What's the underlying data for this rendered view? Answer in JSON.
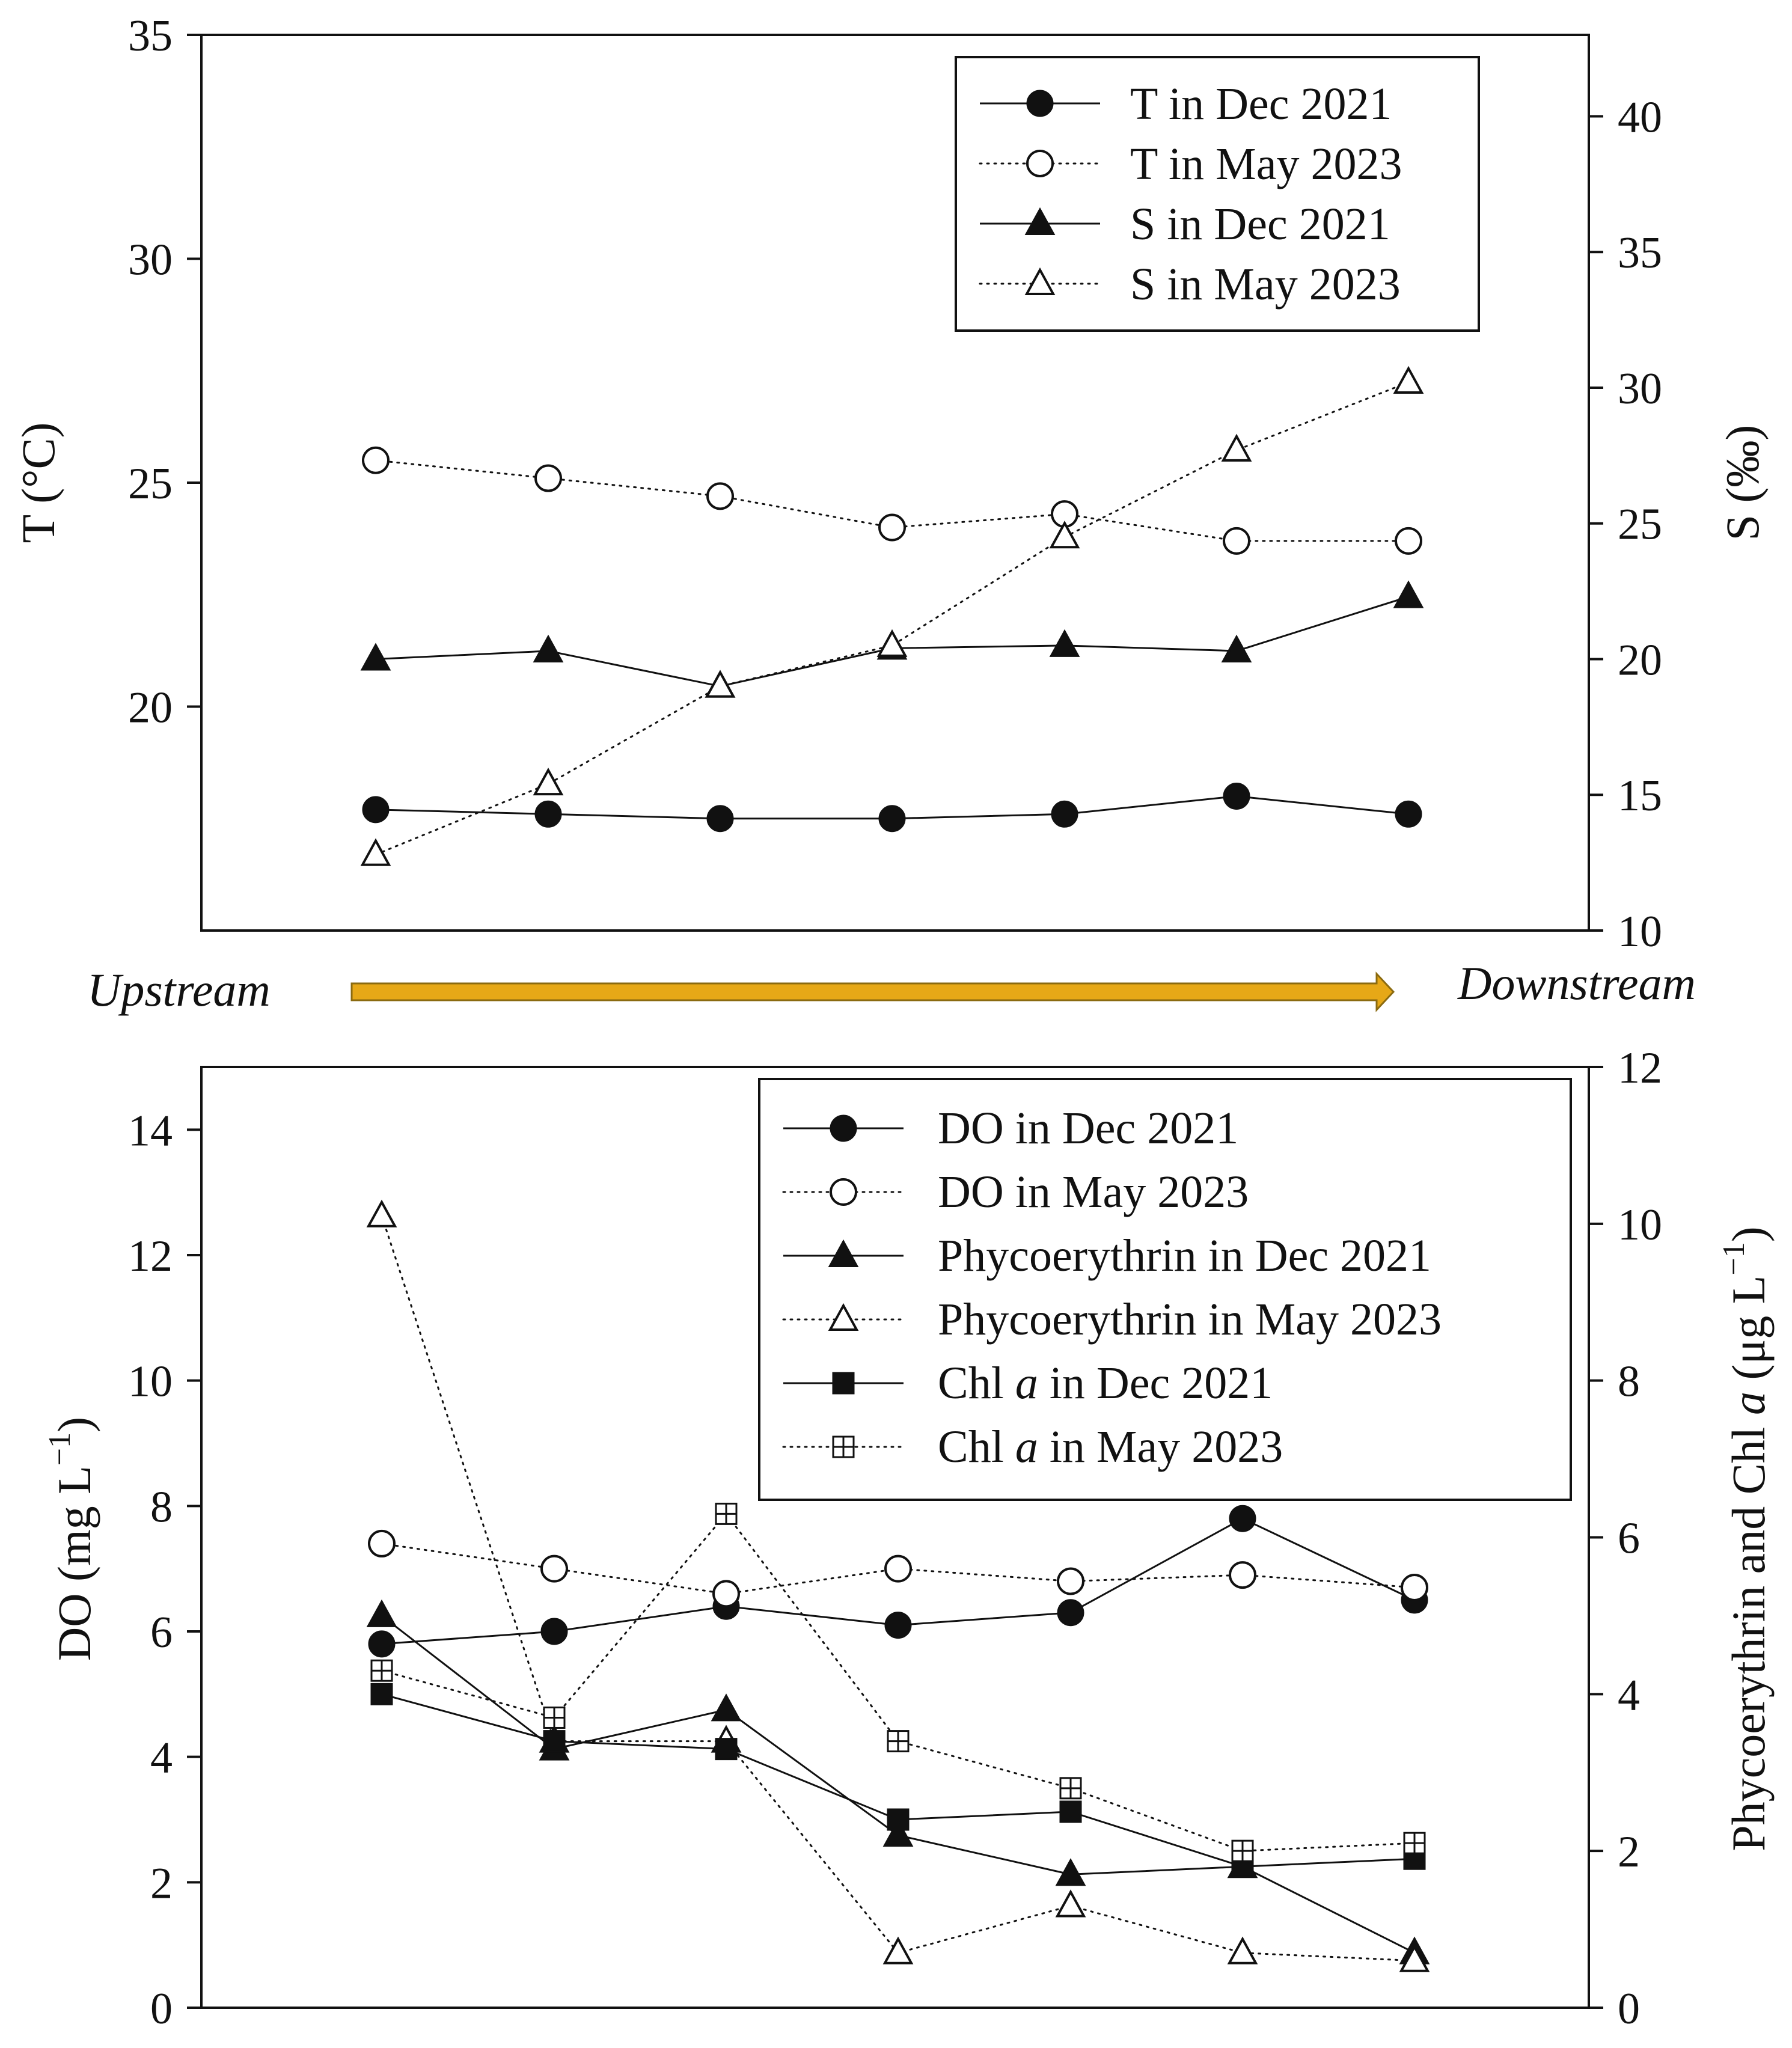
{
  "chart_data": [
    {
      "type": "line",
      "x_positions": 7,
      "ylabel_left": "T (°C)",
      "ylabel_right": "S (‰)",
      "ylim_left": [
        15,
        35
      ],
      "ylim_right": [
        10,
        43
      ],
      "yticks_left": [
        20,
        25,
        30,
        35
      ],
      "yticks_right": [
        10,
        15,
        20,
        25,
        30,
        35,
        40
      ],
      "legend_position": "top-right",
      "series": [
        {
          "name": "T in Dec 2021",
          "axis": "left",
          "marker": "circle-filled",
          "line": "solid",
          "values": [
            17.7,
            17.6,
            17.5,
            17.5,
            17.6,
            18.0,
            17.6
          ]
        },
        {
          "name": "T in May 2023",
          "axis": "left",
          "marker": "circle-open",
          "line": "dotted",
          "values": [
            25.5,
            25.1,
            24.7,
            24.0,
            24.3,
            23.7,
            23.7
          ]
        },
        {
          "name": "S in Dec 2021",
          "axis": "right",
          "marker": "triangle-filled",
          "line": "solid",
          "values": [
            20.0,
            20.3,
            19.0,
            20.4,
            20.5,
            20.3,
            22.3
          ]
        },
        {
          "name": "S in May 2023",
          "axis": "right",
          "marker": "triangle-open",
          "line": "dotted",
          "values": [
            12.8,
            15.4,
            19.0,
            20.5,
            24.5,
            27.7,
            30.2
          ]
        }
      ]
    },
    {
      "type": "line",
      "x_positions": 7,
      "ylabel_left": "DO (mg L⁻¹)",
      "ylabel_right": "Phycoerythrin and Chl a (μg L⁻¹)",
      "ylim_left": [
        0,
        15
      ],
      "ylim_right": [
        0,
        12
      ],
      "yticks_left": [
        0,
        2,
        4,
        6,
        8,
        10,
        12,
        14
      ],
      "yticks_right": [
        0,
        2,
        4,
        6,
        8,
        10,
        12
      ],
      "legend_position": "top-right",
      "series": [
        {
          "name": "DO in Dec 2021",
          "axis": "left",
          "marker": "circle-filled",
          "line": "solid",
          "values": [
            5.8,
            6.0,
            6.4,
            6.1,
            6.3,
            7.8,
            6.5
          ]
        },
        {
          "name": "DO in May 2023",
          "axis": "left",
          "marker": "circle-open",
          "line": "dotted",
          "values": [
            7.4,
            7.0,
            6.6,
            7.0,
            6.8,
            6.9,
            6.7
          ]
        },
        {
          "name": "Phycoerythrin in Dec 2021",
          "axis": "right",
          "marker": "triangle-filled",
          "line": "solid",
          "values": [
            5.0,
            3.3,
            3.8,
            2.2,
            1.7,
            1.8,
            0.7
          ]
        },
        {
          "name": "Phycoerythrin in May 2023",
          "axis": "right",
          "marker": "triangle-open",
          "line": "dotted",
          "values": [
            10.1,
            3.4,
            3.4,
            0.7,
            1.3,
            0.7,
            0.6
          ]
        },
        {
          "name": "Chl a in Dec 2021",
          "axis": "right",
          "marker": "square-filled",
          "line": "solid",
          "values": [
            4.0,
            3.4,
            3.3,
            2.4,
            2.5,
            1.8,
            1.9
          ]
        },
        {
          "name": "Chl a in May 2023",
          "axis": "right",
          "marker": "square-plus",
          "line": "dotted",
          "values": [
            4.3,
            3.7,
            6.3,
            3.4,
            2.8,
            2.0,
            2.1
          ]
        }
      ]
    }
  ],
  "flow": {
    "upstream_label": "Upstream",
    "downstream_label": "Downstream",
    "arrow_color": "#e6a817"
  }
}
